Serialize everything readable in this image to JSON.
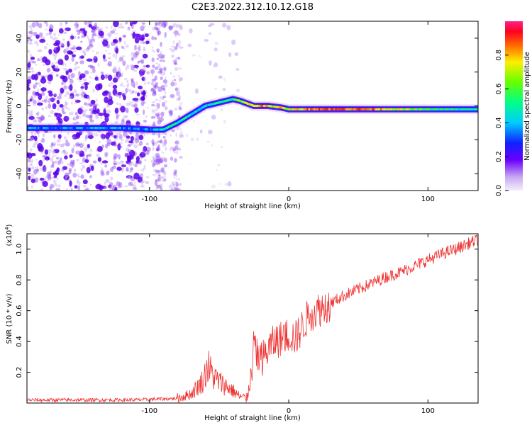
{
  "title": "C2E3.2022.312.10.12.G18",
  "chart_data": [
    {
      "type": "heatmap",
      "xlabel": "Height of straight line (km)",
      "ylabel": "Frequency (Hz)",
      "xlim": [
        -188,
        136
      ],
      "ylim": [
        -50,
        50
      ],
      "xticks": [
        -100,
        0,
        100
      ],
      "yticks": [
        -40,
        -20,
        0,
        20,
        40
      ],
      "colorbar": {
        "label": "Normalized spectral amplitude",
        "range": [
          0,
          1
        ],
        "ticks": [
          "0.0",
          "0.2",
          "0.4",
          "0.6",
          "0.8"
        ],
        "colormap": "rainbow"
      },
      "ridge": {
        "x": [
          -188,
          -150,
          -120,
          -100,
          -90,
          -80,
          -70,
          -60,
          -50,
          -40,
          -35,
          -25,
          -15,
          -5,
          0,
          10,
          50,
          100,
          136
        ],
        "y": [
          -13,
          -13,
          -13,
          -14,
          -14,
          -10,
          -5,
          0,
          2,
          4,
          3,
          0,
          0,
          -1,
          -2,
          -2,
          -2,
          -2,
          -2
        ]
      },
      "ridge_amplitude": {
        "x": [
          -188,
          -100,
          -85,
          -60,
          -40,
          -20,
          0,
          20,
          60,
          100,
          136
        ],
        "y": [
          0.35,
          0.35,
          0.5,
          0.45,
          0.55,
          0.85,
          0.7,
          0.9,
          0.85,
          0.55,
          0.45
        ]
      }
    },
    {
      "type": "line",
      "xlabel": "Height of straight line (km)",
      "ylabel": "SNR (10 * v/v)",
      "yscale_label": "(x10^4)",
      "xlim": [
        -188,
        136
      ],
      "ylim": [
        0,
        1.1
      ],
      "xticks": [
        -100,
        0,
        100
      ],
      "yticks": [
        0.2,
        0.4,
        0.6,
        0.8,
        1.0
      ],
      "series": [
        {
          "color": "#ee3333",
          "x": [
            -188,
            -150,
            -110,
            -80,
            -70,
            -62,
            -58,
            -54,
            -50,
            -45,
            -40,
            -35,
            -30,
            -27,
            -24,
            -22,
            -18,
            -14,
            -10,
            -5,
            0,
            5,
            10,
            15,
            20,
            30,
            40,
            50,
            60,
            70,
            80,
            90,
            100,
            110,
            120,
            130,
            136
          ],
          "y": [
            0.02,
            0.02,
            0.02,
            0.03,
            0.06,
            0.14,
            0.24,
            0.17,
            0.14,
            0.11,
            0.08,
            0.04,
            0.03,
            0.18,
            0.4,
            0.28,
            0.3,
            0.36,
            0.4,
            0.42,
            0.45,
            0.42,
            0.5,
            0.58,
            0.6,
            0.65,
            0.7,
            0.74,
            0.78,
            0.82,
            0.85,
            0.89,
            0.93,
            0.97,
            1.0,
            1.04,
            1.06
          ]
        }
      ]
    }
  ]
}
